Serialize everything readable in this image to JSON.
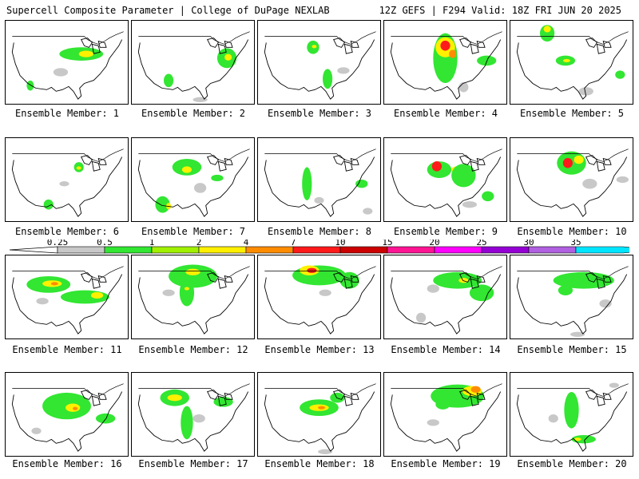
{
  "header": {
    "left_title": "Supercell Composite Parameter | College of DuPage NEXLAB",
    "right_title": "12Z GEFS | F294 Valid: 18Z FRI JUN 20 2025"
  },
  "colorbar": {
    "ticks": [
      "0.25",
      "0.5",
      "1",
      "2",
      "4",
      "7",
      "10",
      "15",
      "20",
      "25",
      "30",
      "35"
    ],
    "colors": [
      "#c8c8c8",
      "#32e632",
      "#a0f000",
      "#fff000",
      "#ff8c00",
      "#ff1a1a",
      "#cc0000",
      "#ff1493",
      "#ff00ff",
      "#9400d3",
      "#b060e0",
      "#00e5ff"
    ]
  },
  "members": [
    {
      "label": "Ensemble Member: 1",
      "blobs": [
        [
          "#32e632",
          0.62,
          0.4,
          0.18,
          0.08
        ],
        [
          "#fff000",
          0.66,
          0.4,
          0.06,
          0.04
        ],
        [
          "#c8c8c8",
          0.45,
          0.62,
          0.06,
          0.05
        ],
        [
          "#32e632",
          0.2,
          0.78,
          0.03,
          0.06
        ]
      ]
    },
    {
      "label": "Ensemble Member: 2",
      "blobs": [
        [
          "#32e632",
          0.78,
          0.45,
          0.08,
          0.12
        ],
        [
          "#fff000",
          0.79,
          0.44,
          0.03,
          0.04
        ],
        [
          "#32e632",
          0.3,
          0.72,
          0.04,
          0.08
        ],
        [
          "#c8c8c8",
          0.56,
          0.95,
          0.06,
          0.03
        ]
      ]
    },
    {
      "label": "Ensemble Member: 3",
      "blobs": [
        [
          "#32e632",
          0.45,
          0.32,
          0.05,
          0.08
        ],
        [
          "#32e632",
          0.57,
          0.7,
          0.04,
          0.12
        ],
        [
          "#c8c8c8",
          0.7,
          0.6,
          0.05,
          0.04
        ],
        [
          "#fff000",
          0.46,
          0.31,
          0.02,
          0.02
        ]
      ]
    },
    {
      "label": "Ensemble Member: 4",
      "blobs": [
        [
          "#32e632",
          0.5,
          0.45,
          0.1,
          0.3
        ],
        [
          "#fff000",
          0.5,
          0.32,
          0.08,
          0.12
        ],
        [
          "#ff1a1a",
          0.5,
          0.3,
          0.04,
          0.06
        ],
        [
          "#ff8c00",
          0.56,
          0.4,
          0.03,
          0.05
        ],
        [
          "#32e632",
          0.84,
          0.48,
          0.08,
          0.06
        ],
        [
          "#c8c8c8",
          0.65,
          0.8,
          0.04,
          0.06
        ]
      ]
    },
    {
      "label": "Ensemble Member: 5",
      "blobs": [
        [
          "#32e632",
          0.3,
          0.15,
          0.06,
          0.1
        ],
        [
          "#fff000",
          0.3,
          0.1,
          0.03,
          0.04
        ],
        [
          "#32e632",
          0.45,
          0.48,
          0.08,
          0.06
        ],
        [
          "#fff000",
          0.46,
          0.48,
          0.03,
          0.02
        ],
        [
          "#32e632",
          0.9,
          0.65,
          0.04,
          0.05
        ],
        [
          "#c8c8c8",
          0.62,
          0.85,
          0.06,
          0.05
        ]
      ]
    },
    {
      "label": "Ensemble Member: 6",
      "blobs": [
        [
          "#32e632",
          0.6,
          0.35,
          0.04,
          0.06
        ],
        [
          "#fff000",
          0.6,
          0.36,
          0.02,
          0.02
        ],
        [
          "#32e632",
          0.35,
          0.8,
          0.04,
          0.06
        ],
        [
          "#c8c8c8",
          0.48,
          0.55,
          0.04,
          0.03
        ]
      ]
    },
    {
      "label": "Ensemble Member: 7",
      "blobs": [
        [
          "#32e632",
          0.45,
          0.35,
          0.12,
          0.1
        ],
        [
          "#fff000",
          0.45,
          0.38,
          0.04,
          0.04
        ],
        [
          "#32e632",
          0.25,
          0.8,
          0.06,
          0.1
        ],
        [
          "#fff000",
          0.3,
          0.82,
          0.02,
          0.04
        ],
        [
          "#32e632",
          0.7,
          0.48,
          0.05,
          0.04
        ],
        [
          "#c8c8c8",
          0.56,
          0.6,
          0.05,
          0.06
        ]
      ]
    },
    {
      "label": "Ensemble Member: 8",
      "blobs": [
        [
          "#32e632",
          0.4,
          0.55,
          0.04,
          0.2
        ],
        [
          "#32e632",
          0.85,
          0.55,
          0.05,
          0.05
        ],
        [
          "#c8c8c8",
          0.5,
          0.75,
          0.04,
          0.04
        ],
        [
          "#c8c8c8",
          0.9,
          0.88,
          0.04,
          0.04
        ]
      ]
    },
    {
      "label": "Ensemble Member: 9",
      "blobs": [
        [
          "#32e632",
          0.45,
          0.38,
          0.1,
          0.1
        ],
        [
          "#ff1a1a",
          0.43,
          0.34,
          0.04,
          0.06
        ],
        [
          "#fff000",
          0.6,
          0.38,
          0.05,
          0.04
        ],
        [
          "#32e632",
          0.65,
          0.45,
          0.1,
          0.14
        ],
        [
          "#32e632",
          0.85,
          0.7,
          0.05,
          0.06
        ],
        [
          "#c8c8c8",
          0.7,
          0.8,
          0.06,
          0.04
        ]
      ]
    },
    {
      "label": "Ensemble Member: 10",
      "blobs": [
        [
          "#32e632",
          0.5,
          0.3,
          0.12,
          0.14
        ],
        [
          "#ff1a1a",
          0.47,
          0.3,
          0.04,
          0.06
        ],
        [
          "#fff000",
          0.56,
          0.26,
          0.04,
          0.05
        ],
        [
          "#c8c8c8",
          0.65,
          0.55,
          0.06,
          0.06
        ],
        [
          "#c8c8c8",
          0.92,
          0.5,
          0.05,
          0.04
        ]
      ]
    },
    {
      "label": "Ensemble Member: 11",
      "blobs": [
        [
          "#32e632",
          0.35,
          0.35,
          0.18,
          0.1
        ],
        [
          "#fff000",
          0.38,
          0.34,
          0.08,
          0.04
        ],
        [
          "#ff8c00",
          0.4,
          0.34,
          0.03,
          0.02
        ],
        [
          "#32e632",
          0.65,
          0.5,
          0.2,
          0.08
        ],
        [
          "#fff000",
          0.75,
          0.48,
          0.05,
          0.04
        ],
        [
          "#c8c8c8",
          0.3,
          0.55,
          0.05,
          0.04
        ]
      ]
    },
    {
      "label": "Ensemble Member: 12",
      "blobs": [
        [
          "#32e632",
          0.5,
          0.25,
          0.2,
          0.14
        ],
        [
          "#fff000",
          0.5,
          0.2,
          0.06,
          0.04
        ],
        [
          "#32e632",
          0.45,
          0.45,
          0.06,
          0.16
        ],
        [
          "#c8c8c8",
          0.3,
          0.45,
          0.05,
          0.04
        ],
        [
          "#fff000",
          0.45,
          0.4,
          0.02,
          0.02
        ]
      ]
    },
    {
      "label": "Ensemble Member: 13",
      "blobs": [
        [
          "#32e632",
          0.5,
          0.24,
          0.22,
          0.12
        ],
        [
          "#fff000",
          0.42,
          0.18,
          0.08,
          0.06
        ],
        [
          "#ff1a1a",
          0.44,
          0.18,
          0.04,
          0.03
        ],
        [
          "#32e632",
          0.75,
          0.3,
          0.08,
          0.1
        ],
        [
          "#c8c8c8",
          0.55,
          0.45,
          0.05,
          0.04
        ]
      ]
    },
    {
      "label": "Ensemble Member: 14",
      "blobs": [
        [
          "#32e632",
          0.6,
          0.3,
          0.2,
          0.1
        ],
        [
          "#fff000",
          0.65,
          0.3,
          0.04,
          0.03
        ],
        [
          "#32e632",
          0.8,
          0.45,
          0.1,
          0.1
        ],
        [
          "#c8c8c8",
          0.4,
          0.4,
          0.05,
          0.05
        ],
        [
          "#c8c8c8",
          0.3,
          0.75,
          0.04,
          0.06
        ]
      ]
    },
    {
      "label": "Ensemble Member: 15",
      "blobs": [
        [
          "#32e632",
          0.6,
          0.3,
          0.25,
          0.1
        ],
        [
          "#32e632",
          0.45,
          0.42,
          0.06,
          0.06
        ],
        [
          "#c8c8c8",
          0.78,
          0.58,
          0.05,
          0.05
        ],
        [
          "#c8c8c8",
          0.55,
          0.95,
          0.06,
          0.03
        ]
      ]
    },
    {
      "label": "Ensemble Member: 16",
      "blobs": [
        [
          "#32e632",
          0.5,
          0.4,
          0.2,
          0.16
        ],
        [
          "#fff000",
          0.55,
          0.42,
          0.06,
          0.05
        ],
        [
          "#ff8c00",
          0.57,
          0.43,
          0.02,
          0.02
        ],
        [
          "#32e632",
          0.82,
          0.55,
          0.08,
          0.06
        ],
        [
          "#c8c8c8",
          0.25,
          0.7,
          0.04,
          0.04
        ]
      ]
    },
    {
      "label": "Ensemble Member: 17",
      "blobs": [
        [
          "#32e632",
          0.35,
          0.3,
          0.12,
          0.1
        ],
        [
          "#ff1a1a",
          0.36,
          0.3,
          0.03,
          0.03
        ],
        [
          "#fff000",
          0.35,
          0.3,
          0.06,
          0.04
        ],
        [
          "#32e632",
          0.45,
          0.6,
          0.05,
          0.2
        ],
        [
          "#32e632",
          0.75,
          0.35,
          0.08,
          0.06
        ],
        [
          "#c8c8c8",
          0.55,
          0.55,
          0.05,
          0.05
        ]
      ]
    },
    {
      "label": "Ensemble Member: 18",
      "blobs": [
        [
          "#32e632",
          0.5,
          0.42,
          0.16,
          0.1
        ],
        [
          "#fff000",
          0.5,
          0.42,
          0.08,
          0.04
        ],
        [
          "#ff8c00",
          0.52,
          0.42,
          0.03,
          0.02
        ],
        [
          "#32e632",
          0.65,
          0.3,
          0.06,
          0.06
        ],
        [
          "#c8c8c8",
          0.55,
          0.95,
          0.06,
          0.03
        ]
      ]
    },
    {
      "label": "Ensemble Member: 19",
      "blobs": [
        [
          "#32e632",
          0.6,
          0.28,
          0.22,
          0.14
        ],
        [
          "#fff000",
          0.72,
          0.22,
          0.08,
          0.06
        ],
        [
          "#ff8c00",
          0.75,
          0.2,
          0.04,
          0.04
        ],
        [
          "#32e632",
          0.48,
          0.38,
          0.06,
          0.06
        ],
        [
          "#c8c8c8",
          0.4,
          0.6,
          0.05,
          0.04
        ]
      ]
    },
    {
      "label": "Ensemble Member: 20",
      "blobs": [
        [
          "#32e632",
          0.5,
          0.45,
          0.06,
          0.22
        ],
        [
          "#32e632",
          0.6,
          0.8,
          0.1,
          0.05
        ],
        [
          "#fff000",
          0.55,
          0.8,
          0.03,
          0.02
        ],
        [
          "#c8c8c8",
          0.35,
          0.55,
          0.04,
          0.05
        ],
        [
          "#c8c8c8",
          0.85,
          0.15,
          0.04,
          0.03
        ]
      ]
    }
  ]
}
